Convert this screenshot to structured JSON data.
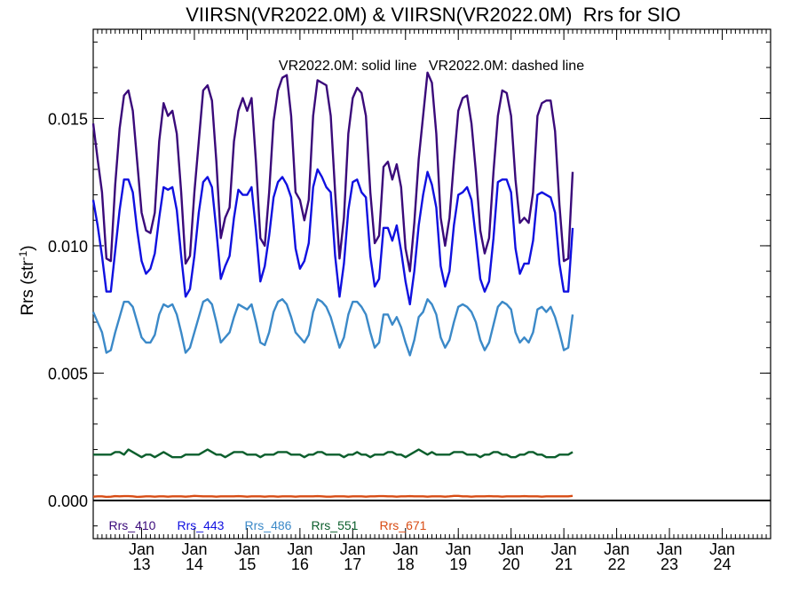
{
  "chart_data": {
    "type": "line",
    "title": "VIIRSN(VR2022.0M) & VIIRSN(VR2022.0M)  Rrs for SIO",
    "annotation": "VR2022.0M: solid line   VR2022.0M: dashed line",
    "ylabel_main": "Rrs (str",
    "ylabel_sup": "-1",
    "ylabel_close": ")",
    "xlabel": "",
    "xlim": [
      0,
      154
    ],
    "ylim": [
      -0.0015,
      0.0185
    ],
    "yticks": [
      0.0,
      0.005,
      0.01,
      0.015
    ],
    "ytick_labels": [
      "0.000",
      "0.005",
      "0.010",
      "0.015"
    ],
    "ytick_minor_step": 0.001,
    "xtick_minor_step": 1,
    "xticks": [
      {
        "x": 11,
        "month": "Jan",
        "year": "13"
      },
      {
        "x": 23,
        "month": "Jan",
        "year": "14"
      },
      {
        "x": 35,
        "month": "Jan",
        "year": "15"
      },
      {
        "x": 47,
        "month": "Jan",
        "year": "16"
      },
      {
        "x": 59,
        "month": "Jan",
        "year": "17"
      },
      {
        "x": 71,
        "month": "Jan",
        "year": "18"
      },
      {
        "x": 83,
        "month": "Jan",
        "year": "19"
      },
      {
        "x": 95,
        "month": "Jan",
        "year": "20"
      },
      {
        "x": 107,
        "month": "Jan",
        "year": "21"
      },
      {
        "x": 119,
        "month": "Jan",
        "year": "22"
      },
      {
        "x": 131,
        "month": "Jan",
        "year": "23"
      },
      {
        "x": 143,
        "month": "Jan",
        "year": "24"
      }
    ],
    "zero_line": 0.0,
    "series": [
      {
        "name": "Rrs_410",
        "color": "#3a0a7a",
        "values": [
          0.0148,
          0.0134,
          0.0121,
          0.0095,
          0.0094,
          0.0124,
          0.0146,
          0.0159,
          0.0161,
          0.0153,
          0.0133,
          0.0113,
          0.0106,
          0.0105,
          0.0113,
          0.0141,
          0.0156,
          0.0151,
          0.0153,
          0.0144,
          0.0121,
          0.0093,
          0.0096,
          0.0121,
          0.0141,
          0.0161,
          0.0163,
          0.0157,
          0.0133,
          0.0103,
          0.0111,
          0.0115,
          0.0141,
          0.0153,
          0.0158,
          0.0153,
          0.0158,
          0.0133,
          0.0103,
          0.01,
          0.0121,
          0.0149,
          0.0161,
          0.0166,
          0.0167,
          0.0151,
          0.0121,
          0.0118,
          0.011,
          0.0118,
          0.0151,
          0.0165,
          0.0164,
          0.0163,
          0.0151,
          0.0121,
          0.0095,
          0.0111,
          0.0144,
          0.0158,
          0.0162,
          0.016,
          0.0151,
          0.0121,
          0.0101,
          0.0104,
          0.0131,
          0.0133,
          0.0126,
          0.0132,
          0.0123,
          0.0099,
          0.009,
          0.0109,
          0.0134,
          0.0151,
          0.0168,
          0.0164,
          0.0144,
          0.0111,
          0.01,
          0.0111,
          0.0133,
          0.0153,
          0.0158,
          0.0159,
          0.0148,
          0.0129,
          0.0106,
          0.0097,
          0.0103,
          0.0129,
          0.0151,
          0.0161,
          0.016,
          0.0151,
          0.0126,
          0.0109,
          0.0111,
          0.0109,
          0.0121,
          0.0151,
          0.0156,
          0.0157,
          0.0157,
          0.0145,
          0.0116,
          0.0094,
          0.0095,
          0.0129
        ]
      },
      {
        "name": "Rrs_443",
        "color": "#1010e0",
        "values": [
          0.0118,
          0.0108,
          0.0096,
          0.0082,
          0.0082,
          0.0098,
          0.0114,
          0.0126,
          0.0126,
          0.0121,
          0.0106,
          0.0094,
          0.0089,
          0.0091,
          0.0097,
          0.0111,
          0.0123,
          0.0122,
          0.0123,
          0.0114,
          0.0096,
          0.008,
          0.0083,
          0.0096,
          0.0113,
          0.0125,
          0.0127,
          0.0123,
          0.0106,
          0.0087,
          0.0092,
          0.0096,
          0.0111,
          0.0122,
          0.012,
          0.012,
          0.0123,
          0.0106,
          0.0086,
          0.0092,
          0.0104,
          0.0119,
          0.0125,
          0.0127,
          0.0124,
          0.0119,
          0.0099,
          0.0091,
          0.0094,
          0.0101,
          0.0123,
          0.013,
          0.0127,
          0.0123,
          0.0121,
          0.0096,
          0.008,
          0.0093,
          0.0114,
          0.0125,
          0.0126,
          0.0121,
          0.0119,
          0.0096,
          0.0084,
          0.0087,
          0.0107,
          0.0107,
          0.0102,
          0.0108,
          0.0098,
          0.0086,
          0.0077,
          0.009,
          0.0108,
          0.012,
          0.0129,
          0.0124,
          0.0115,
          0.0092,
          0.0084,
          0.009,
          0.0108,
          0.012,
          0.0121,
          0.0123,
          0.0118,
          0.0103,
          0.0087,
          0.0082,
          0.0086,
          0.0103,
          0.0125,
          0.0126,
          0.0126,
          0.0121,
          0.0099,
          0.0089,
          0.0093,
          0.0093,
          0.0102,
          0.012,
          0.0121,
          0.012,
          0.0119,
          0.0113,
          0.0093,
          0.0082,
          0.0082,
          0.0107
        ]
      },
      {
        "name": "Rrs_486",
        "color": "#3b89c8",
        "values": [
          0.0074,
          0.007,
          0.0066,
          0.0058,
          0.0059,
          0.0066,
          0.0072,
          0.0078,
          0.0078,
          0.0076,
          0.007,
          0.0064,
          0.0062,
          0.0062,
          0.0065,
          0.0073,
          0.0077,
          0.0076,
          0.0077,
          0.0073,
          0.0066,
          0.0058,
          0.006,
          0.0066,
          0.0072,
          0.0078,
          0.0079,
          0.0077,
          0.007,
          0.0062,
          0.0064,
          0.0066,
          0.0072,
          0.0077,
          0.0076,
          0.0075,
          0.0077,
          0.007,
          0.0062,
          0.0061,
          0.0066,
          0.0074,
          0.0078,
          0.0079,
          0.0077,
          0.0072,
          0.0066,
          0.0064,
          0.0062,
          0.0065,
          0.0074,
          0.0079,
          0.0078,
          0.0076,
          0.0072,
          0.0066,
          0.006,
          0.0064,
          0.0073,
          0.0078,
          0.0078,
          0.0076,
          0.0073,
          0.0066,
          0.006,
          0.0062,
          0.0073,
          0.0073,
          0.0069,
          0.0072,
          0.0068,
          0.0062,
          0.0057,
          0.0063,
          0.0072,
          0.0074,
          0.0079,
          0.0077,
          0.0073,
          0.0064,
          0.006,
          0.0063,
          0.007,
          0.0076,
          0.0077,
          0.0076,
          0.0074,
          0.007,
          0.0063,
          0.0059,
          0.0062,
          0.0069,
          0.0076,
          0.0078,
          0.0077,
          0.0075,
          0.0066,
          0.0062,
          0.0064,
          0.0062,
          0.0066,
          0.0075,
          0.0076,
          0.0074,
          0.0076,
          0.0072,
          0.0066,
          0.0059,
          0.006,
          0.0073
        ]
      },
      {
        "name": "Rrs_551",
        "color": "#0b5e2c",
        "values": [
          0.0018,
          0.0018,
          0.0018,
          0.0018,
          0.0018,
          0.0019,
          0.0019,
          0.0018,
          0.002,
          0.0019,
          0.0018,
          0.0017,
          0.0018,
          0.0018,
          0.0017,
          0.0018,
          0.0019,
          0.0018,
          0.0017,
          0.0017,
          0.0017,
          0.0018,
          0.0018,
          0.0018,
          0.0018,
          0.0019,
          0.002,
          0.0019,
          0.0018,
          0.0018,
          0.0017,
          0.0018,
          0.0019,
          0.0019,
          0.0019,
          0.0018,
          0.0018,
          0.0018,
          0.0017,
          0.0018,
          0.0018,
          0.0018,
          0.0019,
          0.0019,
          0.0019,
          0.0018,
          0.0018,
          0.0018,
          0.0017,
          0.0018,
          0.0018,
          0.0019,
          0.0019,
          0.0018,
          0.0018,
          0.0018,
          0.0018,
          0.0017,
          0.0018,
          0.0018,
          0.0019,
          0.0018,
          0.0018,
          0.0017,
          0.0018,
          0.0018,
          0.0018,
          0.0019,
          0.0019,
          0.0018,
          0.0018,
          0.0017,
          0.0018,
          0.0019,
          0.002,
          0.0019,
          0.0018,
          0.0019,
          0.0018,
          0.0018,
          0.0018,
          0.0018,
          0.0019,
          0.0019,
          0.0019,
          0.0018,
          0.0018,
          0.0018,
          0.0017,
          0.0018,
          0.0018,
          0.0019,
          0.0019,
          0.0018,
          0.0018,
          0.0017,
          0.0017,
          0.0018,
          0.0018,
          0.0019,
          0.0019,
          0.0018,
          0.0018,
          0.0017,
          0.0017,
          0.0017,
          0.0018,
          0.0018,
          0.0018,
          0.0019
        ]
      },
      {
        "name": "Rrs_671",
        "color": "#d84c14",
        "values": [
          0.00015,
          0.00016,
          0.00016,
          0.00014,
          0.00015,
          0.00017,
          0.00016,
          0.00017,
          0.00017,
          0.00016,
          0.00014,
          0.00015,
          0.00016,
          0.00016,
          0.00015,
          0.00016,
          0.00016,
          0.00015,
          0.00016,
          0.00016,
          0.00016,
          0.00015,
          0.00016,
          0.00018,
          0.00017,
          0.00016,
          0.00016,
          0.00016,
          0.00015,
          0.00016,
          0.00016,
          0.00016,
          0.00016,
          0.00017,
          0.00016,
          0.00015,
          0.00016,
          0.00016,
          0.00016,
          0.00015,
          0.00016,
          0.00016,
          0.00015,
          0.00016,
          0.00016,
          0.00016,
          0.00015,
          0.00016,
          0.00016,
          0.00016,
          0.00016,
          0.00017,
          0.00016,
          0.00015,
          0.00015,
          0.00016,
          0.00016,
          0.00016,
          0.00015,
          0.00016,
          0.00016,
          0.00016,
          0.00015,
          0.00016,
          0.00016,
          0.00017,
          0.00017,
          0.00016,
          0.00016,
          0.00015,
          0.00016,
          0.00016,
          0.00017,
          0.00016,
          0.00016,
          0.00016,
          0.00015,
          0.00016,
          0.00016,
          0.00016,
          0.00015,
          0.00016,
          0.00018,
          0.00018,
          0.00016,
          0.00016,
          0.00015,
          0.00016,
          0.00016,
          0.00016,
          0.00017,
          0.00016,
          0.00016,
          0.00015,
          0.00016,
          0.00016,
          0.00016,
          0.00016,
          0.00017,
          0.00016,
          0.00016,
          0.00016,
          0.00015,
          0.00016,
          0.00016,
          0.00016,
          0.00016,
          0.00016,
          0.00016,
          0.00018
        ]
      }
    ]
  }
}
